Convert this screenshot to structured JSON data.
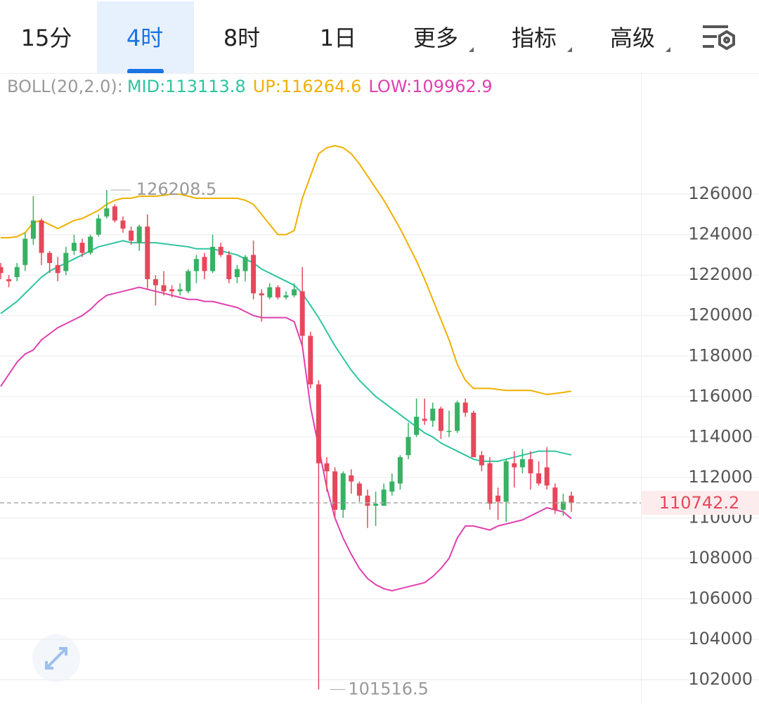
{
  "tabs": [
    {
      "label": "15分"
    },
    {
      "label": "4时",
      "active": true
    },
    {
      "label": "8时"
    },
    {
      "label": "1日"
    },
    {
      "label": "更多",
      "menu": true
    },
    {
      "label": "指标",
      "menu": true
    },
    {
      "label": "高级",
      "menu": true
    }
  ],
  "chart_data": {
    "type": "candlestick",
    "indicator_label": "BOLL(20,2.0):",
    "open": [
      122400,
      121800,
      121900,
      122500,
      123800,
      124700,
      123100,
      122500,
      122200,
      123200,
      123600,
      123100,
      124000,
      124900,
      125400,
      124700,
      124200,
      123600,
      124400,
      121800,
      121500,
      121300,
      121200,
      121200,
      122200,
      122900,
      122200,
      123400,
      123000,
      121900,
      122200,
      123000,
      121100,
      120900,
      121400,
      120900,
      121000,
      121200,
      119000,
      116600,
      112700,
      112300,
      110400,
      112100,
      111700,
      111100,
      110600,
      110600,
      111300,
      111700,
      113100,
      114100,
      114900,
      114800,
      115400,
      114300,
      114300,
      115700,
      115200,
      113100,
      112700,
      111100,
      110800,
      112700,
      112500,
      112900,
      112200,
      112500,
      111500,
      110400,
      111100
    ],
    "high": [
      122600,
      122000,
      122600,
      124100,
      125900,
      124800,
      123200,
      122900,
      123400,
      124000,
      123800,
      124000,
      125000,
      126208.5,
      125500,
      124900,
      124400,
      124500,
      125000,
      122000,
      122200,
      121500,
      121600,
      122300,
      123000,
      123100,
      124000,
      123600,
      123200,
      122500,
      123000,
      123700,
      121300,
      121600,
      121500,
      121200,
      121600,
      122400,
      119200,
      116800,
      113000,
      112500,
      112300,
      112400,
      111800,
      111400,
      111300,
      111700,
      112200,
      113100,
      114700,
      115900,
      115900,
      115700,
      115500,
      115300,
      115800,
      115900,
      115300,
      113300,
      113000,
      111500,
      112900,
      113300,
      113400,
      113300,
      112800,
      113500,
      111700,
      111200,
      111300
    ],
    "low": [
      121800,
      121400,
      121700,
      122200,
      123500,
      122500,
      122100,
      121700,
      122000,
      123000,
      122900,
      123000,
      123900,
      124800,
      124600,
      124100,
      123500,
      123200,
      121300,
      120500,
      121000,
      120900,
      121000,
      121100,
      121600,
      121800,
      122100,
      122900,
      121600,
      121600,
      121700,
      120800,
      119700,
      120800,
      120800,
      120800,
      120900,
      118500,
      116400,
      101516.5,
      111300,
      110000,
      110000,
      111200,
      110800,
      109500,
      109600,
      110600,
      111100,
      111400,
      112900,
      114000,
      114600,
      114500,
      113900,
      114000,
      114200,
      115000,
      113000,
      112300,
      110400,
      109900,
      109800,
      111500,
      112200,
      111400,
      111600,
      111400,
      110200,
      110100,
      110300
    ],
    "close": [
      122100,
      121700,
      122400,
      123800,
      124700,
      123100,
      122600,
      122100,
      123100,
      123600,
      123100,
      123900,
      124800,
      125300,
      124700,
      124300,
      123700,
      124400,
      121800,
      121500,
      121200,
      121200,
      121300,
      122200,
      122800,
      122200,
      123400,
      123000,
      121800,
      122300,
      122900,
      121100,
      121000,
      121400,
      120900,
      121000,
      121300,
      119000,
      116600,
      112700,
      112300,
      110400,
      112200,
      111800,
      111100,
      110600,
      110700,
      111400,
      111800,
      113000,
      114000,
      115000,
      114800,
      115400,
      114300,
      114300,
      115700,
      115200,
      113000,
      112600,
      110700,
      110800,
      112800,
      112500,
      112900,
      112200,
      111700,
      111600,
      110400,
      110800,
      110742.2
    ],
    "up_color": "#37b163",
    "down_color": "#e8475b",
    "bands": [
      {
        "label": "MID:113113.8",
        "color": "#2ec4a0",
        "values": [
          120100,
          120400,
          120700,
          121100,
          121500,
          121900,
          122200,
          122400,
          122600,
          122800,
          123000,
          123200,
          123400,
          123500,
          123600,
          123700,
          123600,
          123600,
          123600,
          123600,
          123550,
          123500,
          123450,
          123400,
          123300,
          123300,
          123300,
          123200,
          123100,
          123000,
          122800,
          122600,
          122300,
          122100,
          121900,
          121700,
          121500,
          121100,
          120500,
          119900,
          119200,
          118500,
          117900,
          117300,
          116800,
          116400,
          116000,
          115700,
          115400,
          115100,
          114800,
          114500,
          114200,
          114000,
          113700,
          113500,
          113300,
          113100,
          112900,
          112800,
          112800,
          112800,
          112900,
          113000,
          113100,
          113200,
          113300,
          113300,
          113300,
          113200,
          113113.8
        ]
      },
      {
        "label": "UP:116264.6",
        "color": "#f0b000",
        "values": [
          123850,
          123850,
          123900,
          124100,
          124600,
          124700,
          124500,
          124300,
          124500,
          124700,
          124800,
          125000,
          125200,
          125500,
          125700,
          125800,
          125800,
          125900,
          125900,
          125900,
          125950,
          126000,
          126000,
          125900,
          125800,
          125800,
          125800,
          125800,
          125800,
          125800,
          125700,
          125500,
          125000,
          124500,
          124000,
          124000,
          124200,
          125800,
          126900,
          128000,
          128300,
          128400,
          128300,
          128000,
          127500,
          126900,
          126300,
          125700,
          125000,
          124300,
          123500,
          122700,
          121800,
          120800,
          119800,
          118800,
          117600,
          116800,
          116400,
          116400,
          116400,
          116350,
          116300,
          116300,
          116300,
          116300,
          116200,
          116100,
          116150,
          116200,
          116264.6
        ]
      },
      {
        "label": "LOW:109962.9",
        "color": "#e040b0",
        "values": [
          116500,
          117100,
          117700,
          118100,
          118300,
          118800,
          119100,
          119400,
          119600,
          119800,
          120000,
          120300,
          120700,
          121000,
          121100,
          121200,
          121300,
          121400,
          121300,
          121200,
          121100,
          121000,
          120900,
          120800,
          120800,
          120700,
          120700,
          120600,
          120500,
          120400,
          120200,
          120000,
          119900,
          119900,
          119900,
          119900,
          119700,
          118500,
          115500,
          113500,
          111500,
          110000,
          109000,
          108200,
          107500,
          107000,
          106700,
          106500,
          106400,
          106500,
          106600,
          106700,
          106800,
          107100,
          107500,
          108000,
          109000,
          109600,
          109600,
          109500,
          109400,
          109600,
          109700,
          109800,
          109900,
          110100,
          110300,
          110500,
          110400,
          110300,
          109962.9
        ]
      }
    ],
    "max_label": "126208.5",
    "min_label": "101516.5",
    "last_label": "110742.2",
    "ylim": [
      100800,
      131950
    ],
    "yticks": [
      102000,
      104000,
      106000,
      108000,
      110000,
      112000,
      114000,
      116000,
      118000,
      120000,
      122000,
      124000,
      126000
    ],
    "grid": true
  }
}
